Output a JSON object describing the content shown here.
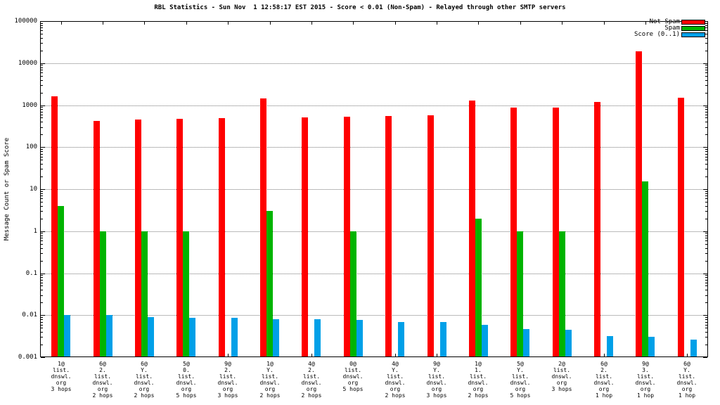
{
  "title": "RBL Statistics - Sun Nov  1 12:58:17 EST 2015 - Score < 0.01 (Non-Spam) - Relayed through other SMTP servers",
  "ylabel": "Message Count or Spam Score",
  "legend": {
    "position": "top-right",
    "entries": [
      {
        "label": "Not Spam",
        "color": "#ff0000"
      },
      {
        "label": "Spam",
        "color": "#00b400"
      },
      {
        "label": "Score (0..1)",
        "color": "#00a0e8"
      }
    ]
  },
  "chart_data": {
    "type": "bar",
    "log_y": true,
    "ylim": [
      0.001,
      100000
    ],
    "ytick_labels": [
      "0.001",
      "0.01",
      "0.1",
      "1",
      "10",
      "100",
      "1000",
      "10000",
      "100000"
    ],
    "grid": "horizontal-dotted",
    "legend_position": "top-right",
    "categories": [
      [
        "1@",
        "list.",
        "dnswl.",
        "org",
        "3 hops"
      ],
      [
        "6@",
        "2.",
        "list.",
        "dnswl.",
        "org",
        "2 hops"
      ],
      [
        "6@",
        "Y.",
        "list.",
        "dnswl.",
        "org",
        "2 hops"
      ],
      [
        "5@",
        "0.",
        "list.",
        "dnswl.",
        "org",
        "5 hops"
      ],
      [
        "9@",
        "2.",
        "list.",
        "dnswl.",
        "org",
        "3 hops"
      ],
      [
        "1@",
        "Y.",
        "list.",
        "dnswl.",
        "org",
        "2 hops"
      ],
      [
        "4@",
        "2.",
        "list.",
        "dnswl.",
        "org",
        "2 hops"
      ],
      [
        "0@",
        "list.",
        "dnswl.",
        "org",
        "5 hops"
      ],
      [
        "4@",
        "Y.",
        "list.",
        "dnswl.",
        "org",
        "2 hops"
      ],
      [
        "9@",
        "Y.",
        "list.",
        "dnswl.",
        "org",
        "3 hops"
      ],
      [
        "1@",
        "1.",
        "list.",
        "dnswl.",
        "org",
        "2 hops"
      ],
      [
        "5@",
        "Y.",
        "list.",
        "dnswl.",
        "org",
        "5 hops"
      ],
      [
        "2@",
        "list.",
        "dnswl.",
        "org",
        "3 hops"
      ],
      [
        "6@",
        "2.",
        "list.",
        "dnswl.",
        "org",
        "1 hop"
      ],
      [
        "9@",
        "3.",
        "list.",
        "dnswl.",
        "org",
        "1 hop"
      ],
      [
        "6@",
        "Y.",
        "list.",
        "dnswl.",
        "org",
        "1 hop"
      ]
    ],
    "series": [
      {
        "name": "Not Spam",
        "color": "#ff0000",
        "values": [
          1600,
          420,
          450,
          470,
          490,
          1450,
          510,
          530,
          550,
          580,
          1300,
          870,
          890,
          1200,
          19000,
          1500
        ]
      },
      {
        "name": "Spam",
        "color": "#00b400",
        "values": [
          4,
          1,
          1,
          1,
          0,
          3,
          0,
          1,
          0,
          0,
          2,
          1,
          1,
          0,
          15,
          0
        ]
      },
      {
        "name": "Score (0..1)",
        "color": "#00a0e8",
        "values": [
          0.01,
          0.01,
          0.009,
          0.0085,
          0.0085,
          0.008,
          0.008,
          0.0078,
          0.007,
          0.0068,
          0.006,
          0.0047,
          0.0045,
          0.0032,
          0.003,
          0.0026
        ]
      }
    ]
  }
}
